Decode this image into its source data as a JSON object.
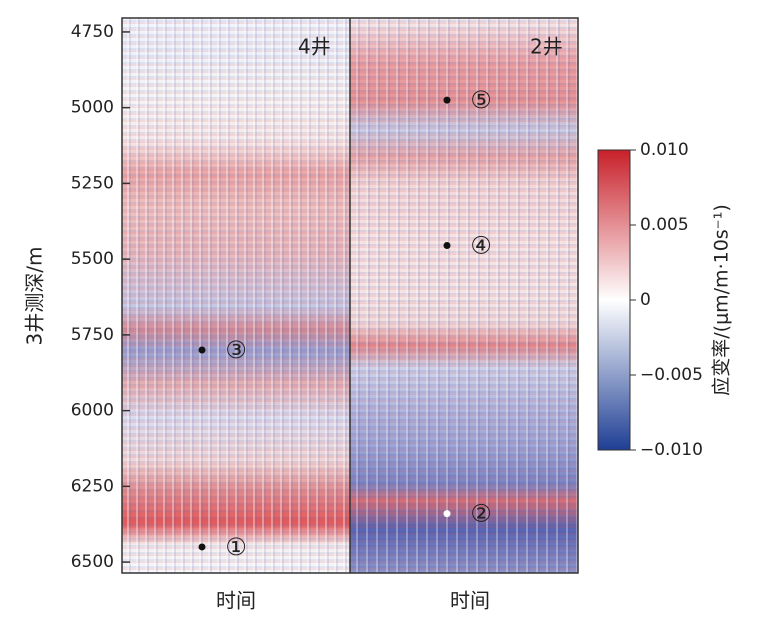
{
  "chart_data": {
    "type": "heatmap",
    "y_label": "3井测深/m",
    "panels": [
      {
        "title": "4井",
        "x_label": "时间"
      },
      {
        "title": "2井",
        "x_label": "时间"
      }
    ],
    "ylim": [
      4704,
      6536
    ],
    "yticks": [
      4750,
      5000,
      5250,
      5500,
      5750,
      6000,
      6250,
      6500
    ],
    "colorbar": {
      "label": "应变率/(μm/m·10s⁻¹)",
      "clim": [
        -0.01,
        0.01
      ],
      "ticks": [
        {
          "value": 0.01,
          "label": "0.010"
        },
        {
          "value": 0.005,
          "label": "0.005"
        },
        0,
        {
          "value": -0.005,
          "label": "−0.005"
        },
        {
          "value": -0.01,
          "label": "−0.010"
        }
      ]
    },
    "annotations": [
      {
        "panel": 0,
        "label": "①",
        "depth": 6450
      },
      {
        "panel": 1,
        "label": "②",
        "depth": 6340
      },
      {
        "panel": 0,
        "label": "③",
        "depth": 5800
      },
      {
        "panel": 1,
        "label": "④",
        "depth": 5455
      },
      {
        "panel": 1,
        "label": "⑤",
        "depth": 4975
      }
    ]
  }
}
